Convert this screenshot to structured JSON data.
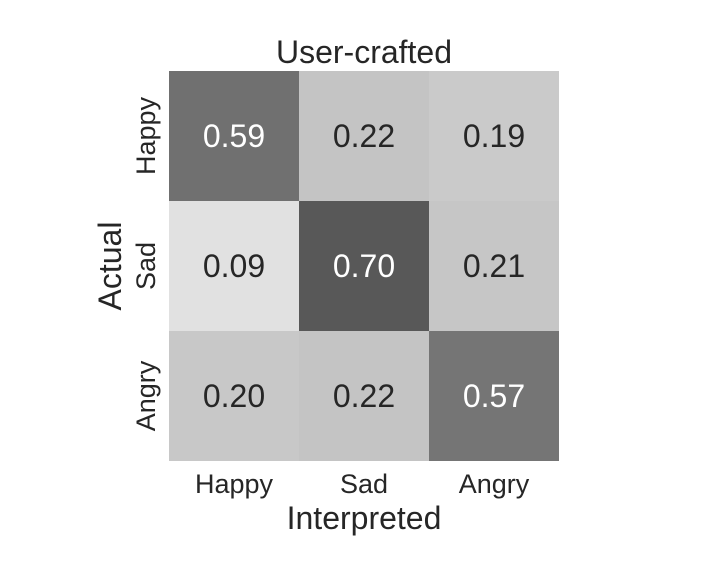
{
  "chart_data": {
    "type": "heatmap",
    "title": "User-crafted",
    "xlabel": "Interpreted",
    "ylabel": "Actual",
    "x_categories": [
      "Happy",
      "Sad",
      "Angry"
    ],
    "y_categories": [
      "Happy",
      "Sad",
      "Angry"
    ],
    "values": [
      [
        0.59,
        0.22,
        0.19
      ],
      [
        0.09,
        0.7,
        0.21
      ],
      [
        0.2,
        0.22,
        0.57
      ]
    ],
    "value_labels": [
      [
        "0.59",
        "0.22",
        "0.19"
      ],
      [
        "0.09",
        "0.70",
        "0.21"
      ],
      [
        "0.20",
        "0.22",
        "0.57"
      ]
    ],
    "colormap": "greys",
    "vmin": 0.0,
    "vmax": 1.0,
    "grid": false,
    "colorbar": false
  }
}
